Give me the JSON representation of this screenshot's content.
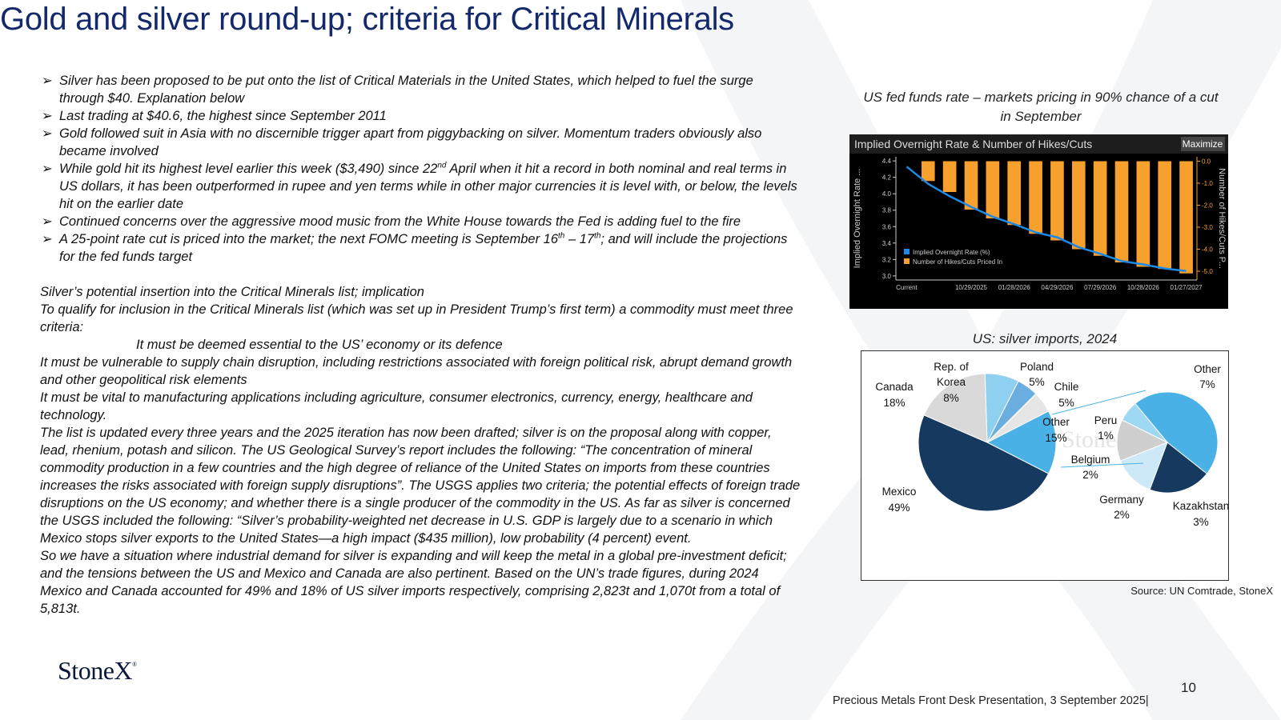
{
  "title": "Gold and silver round-up; criteria for Critical Minerals",
  "bullets": [
    "Silver has been proposed to be put onto the list of Critical Materials in the United States, which helped to fuel the surge through $40.  Explanation below",
    "Last trading at $40.6, the highest since September 2011",
    "Gold followed suit in Asia with no discernible trigger apart from piggybacking on silver.  Momentum traders obviously also became involved"
  ],
  "bullet4": {
    "before": "While gold hit its highest level earlier this week ($3,490) since 22",
    "sup": "nd",
    "after": " April when it hit a record in both nominal and real terms in US dollars, it has been outperformed in rupee and yen terms while in other major currencies it is level with, or below, the levels hit on the earlier date"
  },
  "bullet5": "Continued concerns over the aggressive mood music from the White House towards the Fed is adding fuel to the fire",
  "bullet6": {
    "before": "A 25-point rate cut is priced into the market; the next FOMC meeting is September 16",
    "sup1": "th",
    "mid": " – 17",
    "sup2": "th",
    "after": "; and will include the projections for the fed funds target"
  },
  "section": {
    "heading": "Silver’s potential insertion into the Critical Minerals list; implication",
    "intro": "To qualify for inclusion in the Critical Minerals list (which was set up in  President Trump’s first term) a commodity must meet three criteria:",
    "criterion1": "It must be deemed essential to the US’ economy or its defence",
    "criterion2": "It must be vulnerable to supply chain disruption, including restrictions associated with foreign political risk, abrupt demand growth and other geopolitical risk elements",
    "criterion3": "It must be vital to manufacturing applications including agriculture, consumer electronics, currency, energy, healthcare and technology.",
    "paragraph1": "The list is updated every three years and the 2025 iteration has now been drafted; silver is on the proposal along with copper, lead, rhenium, potash and silicon.  The US Geological Survey’s report includes the following: “The concentration of mineral commodity production in a few countries and the high degree of reliance of the United States on imports from these countries increases the risks associated with foreign supply disruptions”.   The USGS applies two criteria; the potential effects of foreign trade disruptions on the US economy; and whether there is a single producer of the commodity in the US.  As far as silver is concerned the USGS included the following: “Silver’s probability-weighted net decrease in U.S. GDP is largely due to a scenario in which Mexico stops silver exports to the United States—a high impact ($435 million), low probability (4 percent) event.",
    "paragraph2": "So we have a situation where industrial demand for silver is expanding and will keep the metal in a global pre-investment deficit; and the tensions between the US and Mexico and Canada are also pertinent.  Based on the UN’s trade figures, during 2024 Mexico and Canada accounted for 49% and 18% of US silver imports respectively, comprising 2,823t and 1,070t from a total of 5,813t."
  },
  "rate_chart_caption": "US fed funds rate – markets pricing in 90% chance of a cut in September",
  "pie_chart_caption": "US: silver imports, 2024",
  "source": "Source: UN Comtrade, StoneX",
  "logo": "StoneX",
  "page_number": "10",
  "footer": "Precious Metals Front Desk Presentation, 3 September 2025|",
  "colors": {
    "title": "#13296b",
    "bar": "#f7a02d",
    "line": "#1e88e5",
    "terminal_bg": "#000000"
  },
  "chart_data": [
    {
      "type": "bar",
      "title": "Implied Overnight Rate & Number of Hikes/Cuts",
      "button": "Maximize",
      "ylabel": "Implied Overnight Rate ...",
      "y2label": "Number of Hikes/Cuts P...",
      "categories": [
        "Current",
        "",
        "",
        "10/29/2025",
        "",
        "01/28/2026",
        "",
        "04/29/2026",
        "",
        "07/29/2026",
        "",
        "10/28/2026",
        "",
        "01/27/2027"
      ],
      "x_tick_labels": [
        "Current",
        "10/29/2025",
        "01/28/2026",
        "04/29/2026",
        "07/29/2026",
        "10/28/2026",
        "01/27/2027"
      ],
      "y_ticks": [
        "3.0",
        "3.2",
        "3.4",
        "3.6",
        "3.8",
        "4.0",
        "4.2",
        "4.4"
      ],
      "y2_ticks": [
        "0.0",
        "-1.0",
        "-2.0",
        "-3.0",
        "-4.0",
        "-5.0"
      ],
      "ylim": [
        2.95,
        4.45
      ],
      "y2lim": [
        -5.4,
        0.2
      ],
      "series": [
        {
          "name": "Implied Overnight Rate (%)",
          "kind": "line",
          "values": [
            4.33,
            4.12,
            3.97,
            3.84,
            3.72,
            3.63,
            3.53,
            3.47,
            3.35,
            3.27,
            3.18,
            3.14,
            3.09,
            3.06
          ]
        },
        {
          "name": "Number of Hikes/Cuts Priced In",
          "kind": "bar",
          "values": [
            0,
            -0.9,
            -1.4,
            -2.2,
            -2.6,
            -2.9,
            -3.3,
            -3.6,
            -4.0,
            -4.3,
            -4.6,
            -4.8,
            -4.9,
            -5.1
          ]
        }
      ],
      "legend": "bottom-left"
    },
    {
      "type": "pie",
      "title": "US: silver imports, 2024",
      "slices": [
        {
          "label": "Mexico",
          "value": 49,
          "pct": "49%",
          "color": "#163a5f"
        },
        {
          "label": "Canada",
          "value": 18,
          "pct": "18%",
          "color": "#d9d9d9"
        },
        {
          "label": "Rep. of Korea",
          "value": 8,
          "pct": "8%",
          "color": "#8fcfef"
        },
        {
          "label": "Poland",
          "value": 5,
          "pct": "5%",
          "color": "#6aaee0"
        },
        {
          "label": "Chile",
          "value": 5,
          "pct": "5%",
          "color": "#e6e6e6"
        },
        {
          "label": "Other",
          "value": 15,
          "pct": "15%",
          "color": "#49b1e6"
        }
      ],
      "breakout": [
        {
          "label": "Other",
          "value": 7,
          "pct": "7%",
          "color": "#49b1e6"
        },
        {
          "label": "Kazakhstan",
          "value": 3,
          "pct": "3%",
          "color": "#163a5f"
        },
        {
          "label": "Germany",
          "value": 2,
          "pct": "2%",
          "color": "#cde9f7"
        },
        {
          "label": "Belgium",
          "value": 2,
          "pct": "2%",
          "color": "#cfcfcf"
        },
        {
          "label": "Peru",
          "value": 1,
          "pct": "1%",
          "color": "#9fd8f2"
        }
      ]
    }
  ]
}
